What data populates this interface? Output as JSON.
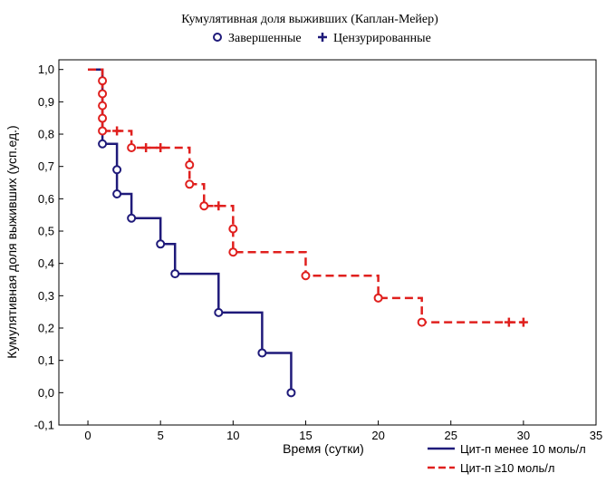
{
  "chart_data": {
    "type": "line",
    "step": true,
    "title": "Кумулятивная доля выживших (Каплан-Мейер)",
    "xlabel": "Время (сутки)",
    "ylabel": "Кумулятивная доля выживших (усп.ед.)",
    "xlim": [
      -2,
      35
    ],
    "ylim": [
      -0.1,
      1.03
    ],
    "x_ticks": [
      0,
      5,
      10,
      15,
      20,
      25,
      30,
      35
    ],
    "x_tick_labels": [
      "0",
      "5",
      "10",
      "15",
      "20",
      "25",
      "30",
      "35"
    ],
    "y_ticks": [
      -0.1,
      0.0,
      0.1,
      0.2,
      0.3,
      0.4,
      0.5,
      0.6,
      0.7,
      0.8,
      0.9,
      1.0
    ],
    "y_tick_labels": [
      "-0,1",
      "0,0",
      "0,1",
      "0,2",
      "0,3",
      "0,4",
      "0,5",
      "0,6",
      "0,7",
      "0,8",
      "0,9",
      "1,0"
    ],
    "grid": false,
    "marker_legend": {
      "completed": "Завершенные",
      "censored": "Цензурированные",
      "placement": "top-center"
    },
    "series_legend_placement": "bottom-right",
    "series": [
      {
        "name": "Цит-п менее 10 моль/л",
        "color": "#1f1a7a",
        "style": "solid",
        "steps": [
          [
            0,
            1.0
          ],
          [
            1,
            0.77
          ],
          [
            2,
            0.615
          ],
          [
            3,
            0.54
          ],
          [
            5,
            0.46
          ],
          [
            6,
            0.368
          ],
          [
            9,
            0.248
          ],
          [
            12,
            0.123
          ],
          [
            14,
            0.0
          ]
        ],
        "events": [
          {
            "x": 1,
            "y": 0.77
          },
          {
            "x": 2,
            "y": 0.69
          },
          {
            "x": 2,
            "y": 0.615
          },
          {
            "x": 3,
            "y": 0.54
          },
          {
            "x": 5,
            "y": 0.46
          },
          {
            "x": 6,
            "y": 0.368
          },
          {
            "x": 9,
            "y": 0.248
          },
          {
            "x": 12,
            "y": 0.123
          },
          {
            "x": 14,
            "y": 0.0
          }
        ],
        "censored": []
      },
      {
        "name": "Цит-п ≥10 моль/л",
        "color": "#e0201e",
        "style": "dashed",
        "steps": [
          [
            0,
            1.0
          ],
          [
            1,
            0.81
          ],
          [
            3,
            0.758
          ],
          [
            7,
            0.645
          ],
          [
            8,
            0.578
          ],
          [
            10,
            0.435
          ],
          [
            15,
            0.362
          ],
          [
            20,
            0.293
          ],
          [
            23,
            0.218
          ],
          [
            30,
            0.218
          ]
        ],
        "events": [
          {
            "x": 1,
            "y": 0.965
          },
          {
            "x": 1,
            "y": 0.925
          },
          {
            "x": 1,
            "y": 0.888
          },
          {
            "x": 1,
            "y": 0.849
          },
          {
            "x": 1,
            "y": 0.81
          },
          {
            "x": 3,
            "y": 0.758
          },
          {
            "x": 7,
            "y": 0.705
          },
          {
            "x": 7,
            "y": 0.645
          },
          {
            "x": 8,
            "y": 0.578
          },
          {
            "x": 10,
            "y": 0.507
          },
          {
            "x": 10,
            "y": 0.435
          },
          {
            "x": 15,
            "y": 0.362
          },
          {
            "x": 20,
            "y": 0.293
          },
          {
            "x": 23,
            "y": 0.218
          }
        ],
        "censored": [
          {
            "x": 2,
            "y": 0.81
          },
          {
            "x": 4,
            "y": 0.758
          },
          {
            "x": 5,
            "y": 0.758
          },
          {
            "x": 9,
            "y": 0.578
          },
          {
            "x": 29,
            "y": 0.218
          },
          {
            "x": 30,
            "y": 0.218
          }
        ]
      }
    ]
  }
}
